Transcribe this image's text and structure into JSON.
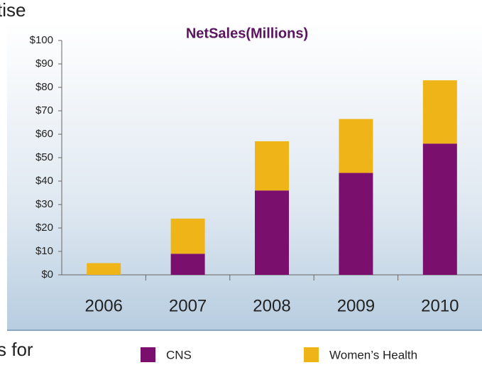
{
  "page_text": [
    "tise",
    "s for"
  ],
  "chart_data": {
    "type": "stacked_bar",
    "title": "NetSales(Millions)",
    "categories": [
      "2006",
      "2007",
      "2008",
      "2009",
      "2010"
    ],
    "series": [
      {
        "name": "CNS",
        "color": "#7b0f6e",
        "values": [
          0,
          9,
          36,
          43.5,
          56
        ]
      },
      {
        "name": "Women’s Health",
        "color": "#efb418",
        "values": [
          5,
          15,
          21,
          23,
          27
        ]
      }
    ],
    "ylim": [
      0,
      100
    ],
    "yticks": [
      {
        "value": 0,
        "label": "$0"
      },
      {
        "value": 10,
        "label": "$10"
      },
      {
        "value": 20,
        "label": "$20"
      },
      {
        "value": 30,
        "label": "$30"
      },
      {
        "value": 40,
        "label": "$40"
      },
      {
        "value": 50,
        "label": "$50"
      },
      {
        "value": 60,
        "label": "$60"
      },
      {
        "value": 70,
        "label": "$70"
      },
      {
        "value": 80,
        "label": "$80"
      },
      {
        "value": 90,
        "label": "$90"
      },
      {
        "value": 100,
        "label": "$100"
      }
    ],
    "legend": "bottom"
  }
}
